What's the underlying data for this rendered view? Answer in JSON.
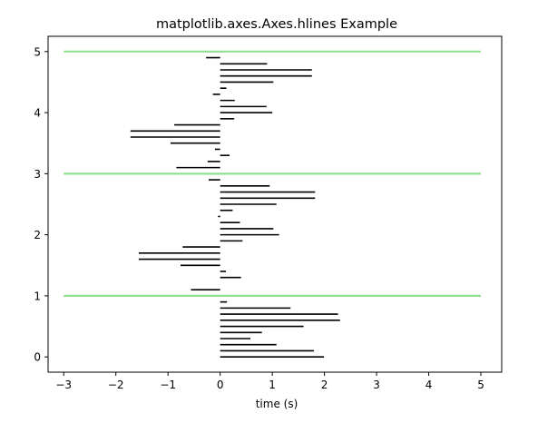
{
  "chart_data": {
    "type": "hlines",
    "title": "matplotlib.axes.Axes.hlines Example",
    "xlabel": "time (s)",
    "ylabel": "",
    "xlim": [
      -3.3,
      5.4
    ],
    "ylim": [
      -0.25,
      5.25
    ],
    "xticks": [
      -3,
      -2,
      -1,
      0,
      1,
      2,
      3,
      4,
      5
    ],
    "xtick_labels": [
      "−3",
      "−2",
      "−1",
      "0",
      "1",
      "2",
      "3",
      "4",
      "5"
    ],
    "yticks": [
      0,
      1,
      2,
      3,
      4,
      5
    ],
    "ytick_labels": [
      "0",
      "1",
      "2",
      "3",
      "4",
      "5"
    ],
    "grid": false,
    "series": [
      {
        "color": "#000000",
        "linewidth": 1.6,
        "lines": [
          {
            "y": 0.0,
            "xmin": 0,
            "xmax": 1.99
          },
          {
            "y": 0.1,
            "xmin": 0,
            "xmax": 1.8
          },
          {
            "y": 0.2,
            "xmin": 0,
            "xmax": 1.08
          },
          {
            "y": 0.3,
            "xmin": 0,
            "xmax": 0.58
          },
          {
            "y": 0.4,
            "xmin": 0,
            "xmax": 0.8
          },
          {
            "y": 0.5,
            "xmin": 0,
            "xmax": 1.6
          },
          {
            "y": 0.6,
            "xmin": 0,
            "xmax": 2.3
          },
          {
            "y": 0.7,
            "xmin": 0,
            "xmax": 2.26
          },
          {
            "y": 0.8,
            "xmin": 0,
            "xmax": 1.35
          },
          {
            "y": 0.9,
            "xmin": 0,
            "xmax": 0.13
          },
          {
            "y": 1.1,
            "xmin": -0.56,
            "xmax": 0
          },
          {
            "y": 1.3,
            "xmin": 0,
            "xmax": 0.4
          },
          {
            "y": 1.4,
            "xmin": 0,
            "xmax": 0.11
          },
          {
            "y": 1.5,
            "xmin": -0.76,
            "xmax": 0
          },
          {
            "y": 1.6,
            "xmin": -1.56,
            "xmax": 0
          },
          {
            "y": 1.7,
            "xmin": -1.56,
            "xmax": 0
          },
          {
            "y": 1.8,
            "xmin": -0.72,
            "xmax": 0
          },
          {
            "y": 1.9,
            "xmin": 0,
            "xmax": 0.43
          },
          {
            "y": 2.0,
            "xmin": 0,
            "xmax": 1.13
          },
          {
            "y": 2.1,
            "xmin": 0,
            "xmax": 1.02
          },
          {
            "y": 2.2,
            "xmin": 0,
            "xmax": 0.38
          },
          {
            "y": 2.3,
            "xmin": -0.04,
            "xmax": 0
          },
          {
            "y": 2.4,
            "xmin": 0,
            "xmax": 0.24
          },
          {
            "y": 2.5,
            "xmin": 0,
            "xmax": 1.08
          },
          {
            "y": 2.6,
            "xmin": 0,
            "xmax": 1.82
          },
          {
            "y": 2.7,
            "xmin": 0,
            "xmax": 1.82
          },
          {
            "y": 2.8,
            "xmin": 0,
            "xmax": 0.95
          },
          {
            "y": 2.9,
            "xmin": -0.22,
            "xmax": 0
          },
          {
            "y": 3.1,
            "xmin": -0.84,
            "xmax": 0
          },
          {
            "y": 3.2,
            "xmin": -0.24,
            "xmax": 0
          },
          {
            "y": 3.3,
            "xmin": 0,
            "xmax": 0.18
          },
          {
            "y": 3.4,
            "xmin": -0.1,
            "xmax": 0
          },
          {
            "y": 3.5,
            "xmin": -0.95,
            "xmax": 0
          },
          {
            "y": 3.6,
            "xmin": -1.72,
            "xmax": 0
          },
          {
            "y": 3.7,
            "xmin": -1.72,
            "xmax": 0
          },
          {
            "y": 3.8,
            "xmin": -0.88,
            "xmax": 0
          },
          {
            "y": 3.9,
            "xmin": 0,
            "xmax": 0.27
          },
          {
            "y": 4.0,
            "xmin": 0,
            "xmax": 1.0
          },
          {
            "y": 4.1,
            "xmin": 0,
            "xmax": 0.89
          },
          {
            "y": 4.2,
            "xmin": 0,
            "xmax": 0.28
          },
          {
            "y": 4.3,
            "xmin": -0.14,
            "xmax": 0
          },
          {
            "y": 4.4,
            "xmin": 0,
            "xmax": 0.12
          },
          {
            "y": 4.5,
            "xmin": 0,
            "xmax": 1.02
          },
          {
            "y": 4.6,
            "xmin": 0,
            "xmax": 1.76
          },
          {
            "y": 4.7,
            "xmin": 0,
            "xmax": 1.76
          },
          {
            "y": 4.8,
            "xmin": 0,
            "xmax": 0.9
          },
          {
            "y": 4.9,
            "xmin": -0.27,
            "xmax": 0
          }
        ]
      },
      {
        "color": "#90e090",
        "linewidth": 2.2,
        "lines": [
          {
            "y": 1,
            "xmin": -3,
            "xmax": 5
          },
          {
            "y": 3,
            "xmin": -3,
            "xmax": 5
          },
          {
            "y": 5,
            "xmin": -3,
            "xmax": 5
          }
        ]
      }
    ]
  }
}
